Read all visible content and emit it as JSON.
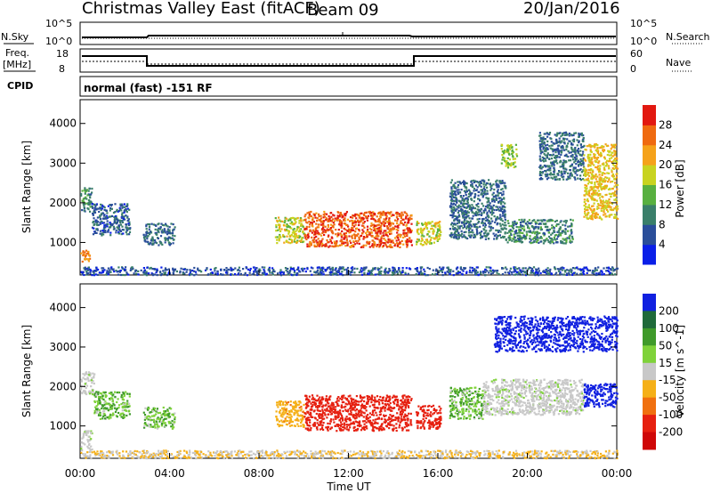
{
  "header": {
    "site": "Christmas Valley East (fitACF)",
    "beam": "Beam 09",
    "date": "20/Jan/2016"
  },
  "strip_labels": {
    "nsky": "N.Sky",
    "nsearch": "N.Search",
    "freq_line1": "Freq.",
    "freq_line2": "[MHz]",
    "nave": "Nave",
    "cpid": "CPID",
    "cpid_value": "normal (fast) -151 RF"
  },
  "strip_ticks": {
    "noise_left_top": "10^5",
    "noise_left_bottom": "10^0",
    "noise_right_top": "10^5",
    "noise_right_bottom": "10^0",
    "freq_left_top": "18",
    "freq_left_bottom": "8",
    "nave_right_top": "60",
    "nave_right_bottom": "0"
  },
  "axes": {
    "ylabel": "Slant Range [km]",
    "xlabel": "Time UT",
    "y_ticks": [
      "1000",
      "2000",
      "3000",
      "4000"
    ],
    "x_ticks": [
      "00:00",
      "04:00",
      "08:00",
      "12:00",
      "16:00",
      "20:00",
      "00:00"
    ]
  },
  "colorbars": {
    "power": {
      "label": "Power [dB]",
      "ticks": [
        "4",
        "8",
        "12",
        "16",
        "20",
        "24",
        "28"
      ],
      "colors": [
        "#0a1fe8",
        "#2a4e9a",
        "#3a7f6a",
        "#58b040",
        "#c8d320",
        "#f5a21a",
        "#ef6a10",
        "#e21810"
      ]
    },
    "velocity": {
      "label": "Velocity [m s^-1]",
      "ticks": [
        "200",
        "100",
        "50",
        "15",
        "-15",
        "-50",
        "-100",
        "-200"
      ],
      "colors": [
        "#1020e0",
        "#1f6a3a",
        "#3f9a2a",
        "#7fd23a",
        "#c8c8c8",
        "#f5b018",
        "#f07010",
        "#e62010",
        "#cf0808"
      ]
    }
  },
  "chart_data": [
    {
      "type": "heatmap",
      "name": "power",
      "x_range_hours": [
        0,
        24
      ],
      "y_range_km": [
        180,
        4600
      ],
      "y_ticks": [
        1000,
        2000,
        3000,
        4000
      ],
      "regions": [
        {
          "t0": 0.0,
          "t1": 0.4,
          "r0": 500,
          "r1": 850,
          "value": 24
        },
        {
          "t0": 0.0,
          "t1": 0.5,
          "r0": 1800,
          "r1": 2400,
          "value": 10
        },
        {
          "t0": 0.5,
          "t1": 2.2,
          "r0": 1200,
          "r1": 2000,
          "value": 7
        },
        {
          "t0": 2.8,
          "t1": 4.2,
          "r0": 950,
          "r1": 1500,
          "value": 8
        },
        {
          "t0": 8.7,
          "t1": 10.0,
          "r0": 1000,
          "r1": 1650,
          "value": 18
        },
        {
          "t0": 10.0,
          "t1": 14.8,
          "r0": 900,
          "r1": 1800,
          "value": 27
        },
        {
          "t0": 15.0,
          "t1": 16.1,
          "r0": 950,
          "r1": 1550,
          "value": 18
        },
        {
          "t0": 16.5,
          "t1": 19.0,
          "r0": 1100,
          "r1": 2600,
          "value": 8
        },
        {
          "t0": 18.8,
          "t1": 19.5,
          "r0": 2900,
          "r1": 3500,
          "value": 16
        },
        {
          "t0": 19.0,
          "t1": 22.0,
          "r0": 1000,
          "r1": 1600,
          "value": 10
        },
        {
          "t0": 20.5,
          "t1": 22.5,
          "r0": 2600,
          "r1": 3800,
          "value": 8
        },
        {
          "t0": 22.5,
          "t1": 24.0,
          "r0": 1600,
          "r1": 3500,
          "value": 20
        },
        {
          "t0": 0.0,
          "t1": 24.0,
          "r0": 200,
          "r1": 400,
          "value": 6
        }
      ]
    },
    {
      "type": "heatmap",
      "name": "velocity",
      "x_range_hours": [
        0,
        24
      ],
      "y_range_km": [
        180,
        4600
      ],
      "y_ticks": [
        1000,
        2000,
        3000,
        4000
      ],
      "regions": [
        {
          "t0": 0.0,
          "t1": 0.5,
          "r0": 400,
          "r1": 900,
          "value": 0
        },
        {
          "t0": 0.0,
          "t1": 0.6,
          "r0": 1800,
          "r1": 2400,
          "value": 0
        },
        {
          "t0": 0.6,
          "t1": 2.2,
          "r0": 1200,
          "r1": 1900,
          "value": 30
        },
        {
          "t0": 2.8,
          "t1": 4.2,
          "r0": 950,
          "r1": 1500,
          "value": 30
        },
        {
          "t0": 8.7,
          "t1": 10.0,
          "r0": 1000,
          "r1": 1650,
          "value": -60
        },
        {
          "t0": 10.0,
          "t1": 14.8,
          "r0": 900,
          "r1": 1800,
          "value": -180
        },
        {
          "t0": 15.0,
          "t1": 16.1,
          "r0": 950,
          "r1": 1550,
          "value": -180
        },
        {
          "t0": 16.5,
          "t1": 18.0,
          "r0": 1200,
          "r1": 2000,
          "value": 30
        },
        {
          "t0": 18.0,
          "t1": 22.5,
          "r0": 1300,
          "r1": 2200,
          "value": 0
        },
        {
          "t0": 18.5,
          "t1": 24.0,
          "r0": 2900,
          "r1": 3800,
          "value": 220
        },
        {
          "t0": 22.5,
          "t1": 24.0,
          "r0": 1500,
          "r1": 2100,
          "value": 220
        },
        {
          "t0": 0.0,
          "t1": 24.0,
          "r0": 200,
          "r1": 400,
          "value": -30
        }
      ]
    }
  ]
}
